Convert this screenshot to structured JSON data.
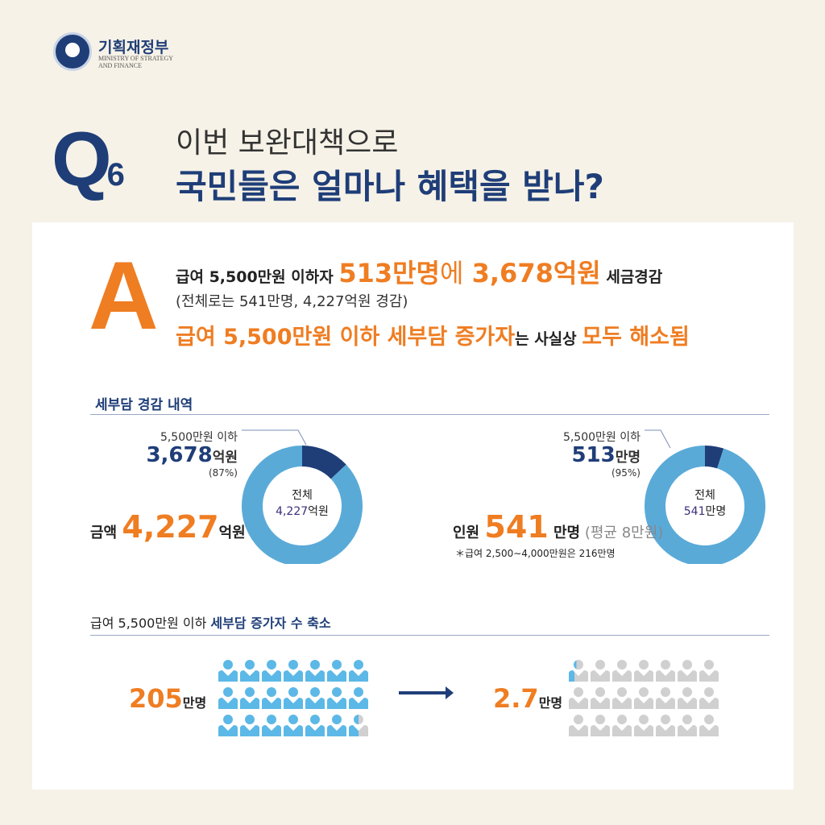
{
  "header": {
    "org_ko": "기획재정부",
    "org_en_1": "MINISTRY OF STRATEGY",
    "org_en_2": "AND FINANCE",
    "q_letter": "Q",
    "q_num": "6",
    "title_1": "이번 보완대책으로",
    "title_2": "국민들은 얼마나 혜택을 받나?"
  },
  "answer": {
    "letter": "A",
    "line1_a": "급여 5,500만원 이하자 ",
    "line1_b": "513만명",
    "line1_c": "에 ",
    "line1_d": "3,678억원",
    "line1_e": " 세금경감",
    "line2": "(전체로는 541만명, 4,227억원 경감)",
    "line3_a": "급여 5,500만원 이하 세부담 증가자",
    "line3_b": "는 사실상 ",
    "line3_c": "모두 해소됨"
  },
  "section1": {
    "title": "세부담 경감 내역",
    "amount": {
      "sub_label": "5,500만원 이하",
      "sub_value": "3,678",
      "sub_unit": "억원",
      "sub_pct": "(87%)",
      "center_label": "전체",
      "center_value": "4,227",
      "center_unit": "억원",
      "total_label": "금액",
      "total_value": "4,227",
      "total_unit": "억원"
    },
    "people": {
      "sub_label": "5,500만원 이하",
      "sub_value": "513",
      "sub_unit": "만명",
      "sub_pct": "(95%)",
      "center_label": "전체",
      "center_value": "541",
      "center_unit": "만명",
      "total_label": "인원",
      "total_value": "541",
      "total_unit": " 만명",
      "avg": " (평균 8만원)",
      "note": "＊급여 2,500∼4,000만원은 216만명"
    }
  },
  "section2": {
    "title_a": "급여 5,500만원 이하 ",
    "title_b": "세부담 증가자 수 축소",
    "before_value": "205",
    "before_unit": "만명",
    "after_value": "2.7",
    "after_unit": "만명"
  },
  "colors": {
    "navy": "#1f3e78",
    "orange": "#ef7d22",
    "light_blue": "#5aaad8",
    "icon_blue": "#5cb8e6",
    "gray": "#d0d0d0"
  },
  "chart_data": [
    {
      "type": "pie",
      "subtype": "donut",
      "slices": [
        {
          "label": "dark segment",
          "value": 13
        },
        {
          "label": "rest",
          "value": 87
        }
      ],
      "center_text": "전체 4,227억원"
    },
    {
      "type": "pie",
      "subtype": "donut",
      "slices": [
        {
          "label": "dark segment",
          "value": 5
        },
        {
          "label": "rest",
          "value": 95
        }
      ],
      "center_text": "전체 541만명"
    },
    {
      "type": "pictogram",
      "icons": 21,
      "filled": 20.5
    },
    {
      "type": "pictogram",
      "icons": 21,
      "filled": 0.3
    }
  ]
}
